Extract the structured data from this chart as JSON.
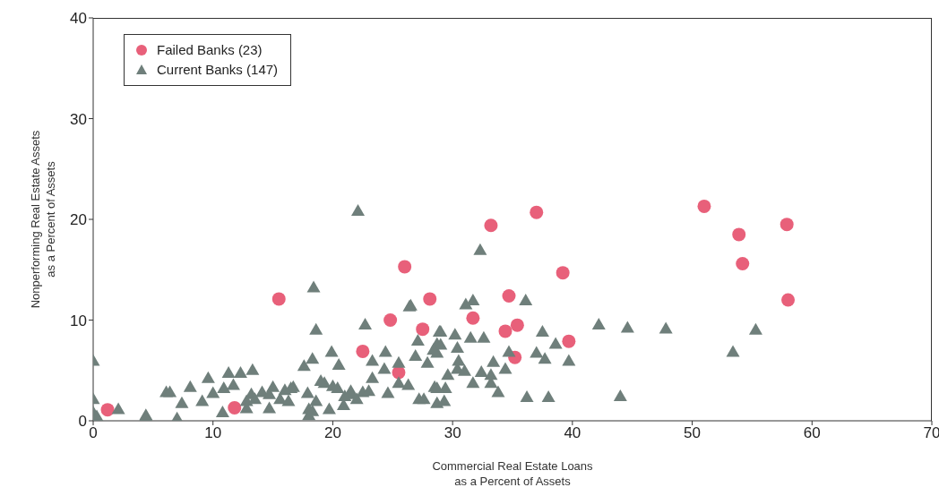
{
  "chart_data": {
    "type": "scatter",
    "xlabel": "Commercial Real Estate Loans\nas a Percent of Assets",
    "ylabel": "Nonperforming Real Estate Assets\nas a Percent of Assets",
    "xlim": [
      0,
      70
    ],
    "xticks": [
      0,
      10,
      20,
      30,
      40,
      50,
      60,
      70
    ],
    "ylim": [
      0,
      40
    ],
    "yticks": [
      0,
      10,
      20,
      30,
      40
    ],
    "grid": false,
    "legend": "top left",
    "series": [
      {
        "name": "Failed Banks (23)",
        "color": "#e8607a",
        "marker": "circle",
        "x": [
          1.2,
          11.8,
          15.5,
          22.5,
          24.8,
          25.5,
          26.0,
          27.5,
          28.1,
          31.7,
          33.2,
          34.4,
          34.7,
          35.2,
          35.4,
          37.0,
          39.2,
          39.7,
          51.0,
          53.9,
          54.2,
          57.9,
          58.0
        ],
        "values": [
          1.1,
          1.3,
          12.1,
          6.9,
          10.0,
          4.8,
          15.3,
          9.1,
          12.1,
          10.2,
          19.4,
          8.9,
          12.4,
          6.3,
          9.5,
          20.7,
          14.7,
          7.9,
          21.3,
          18.5,
          15.6,
          19.5,
          12.0
        ]
      },
      {
        "name": "Current Banks (147)",
        "color": "#6f7f7b",
        "marker": "triangle",
        "x": [
          0,
          0,
          0,
          0.3,
          2.1,
          4.4,
          4.4,
          6.1,
          6.4,
          7.0,
          7.4,
          8.1,
          9.1,
          9.6,
          10.0,
          10.8,
          10.9,
          11.3,
          11.7,
          12.3,
          13.3,
          12.8,
          13.2,
          13.5,
          14.1,
          14.7,
          15.0,
          15.6,
          16.0,
          16.3,
          16.7,
          12.8,
          14.7,
          18.6,
          22.7,
          26.4,
          18.3,
          17.6,
          19.9,
          20.5,
          24.4,
          23.3,
          24.3,
          25.5,
          26.9,
          27.9,
          29.0,
          28.7,
          28.7,
          16.5,
          17.9,
          18.0,
          18.6,
          19.3,
          19.7,
          20.4,
          20.9,
          21.6,
          22.5,
          23.3,
          24.6,
          25.5,
          26.3,
          27.2,
          27.6,
          28.5,
          28.7,
          29.4,
          18.0,
          18.3,
          22.1,
          18.4,
          32.3,
          26.5,
          31.7,
          36.1,
          31.1,
          28.9,
          30.2,
          31.5,
          32.6,
          37.5,
          38.6,
          37.0,
          37.7,
          39.7,
          42.2,
          44.6,
          34.7,
          33.4,
          34.4,
          32.4,
          33.2,
          31.7,
          33.2,
          33.8,
          36.2,
          38.0,
          44.0,
          30.4,
          29.6,
          28.7,
          29.3,
          30.4,
          29.0,
          28.4,
          27.1,
          47.8,
          53.4,
          55.3,
          21.0,
          22.0,
          23.0,
          30.5,
          31.0,
          19.0,
          20.0,
          21.5
        ],
        "values": [
          6.0,
          2.2,
          0.9,
          0.5,
          1.2,
          0.6,
          0.5,
          2.9,
          2.9,
          0.3,
          1.8,
          3.4,
          2.0,
          4.3,
          2.8,
          0.9,
          3.3,
          4.8,
          3.6,
          4.8,
          5.1,
          2.0,
          2.7,
          2.2,
          2.9,
          2.7,
          3.4,
          2.2,
          3.1,
          2.0,
          3.4,
          1.3,
          1.3,
          9.1,
          9.6,
          11.4,
          6.2,
          5.5,
          6.9,
          5.6,
          6.9,
          6.0,
          5.2,
          5.8,
          6.5,
          5.8,
          8.9,
          7.7,
          6.8,
          3.3,
          2.8,
          1.2,
          2.0,
          3.8,
          1.2,
          3.3,
          1.6,
          2.7,
          2.9,
          4.3,
          2.8,
          3.8,
          3.6,
          2.2,
          2.2,
          3.4,
          1.8,
          3.3,
          0.6,
          1.0,
          20.9,
          13.3,
          17.0,
          11.5,
          12.0,
          12.0,
          11.6,
          8.9,
          8.6,
          8.3,
          8.3,
          8.9,
          7.7,
          6.8,
          6.2,
          6.0,
          9.6,
          9.3,
          6.9,
          5.9,
          5.2,
          4.9,
          4.6,
          3.8,
          3.8,
          2.9,
          2.4,
          2.4,
          2.5,
          5.2,
          4.6,
          3.3,
          2.0,
          7.3,
          7.6,
          7.1,
          8.0,
          9.2,
          6.9,
          9.1,
          2.5,
          2.2,
          3.0,
          6.0,
          5.0,
          4.0,
          3.5,
          3.0
        ]
      }
    ]
  }
}
